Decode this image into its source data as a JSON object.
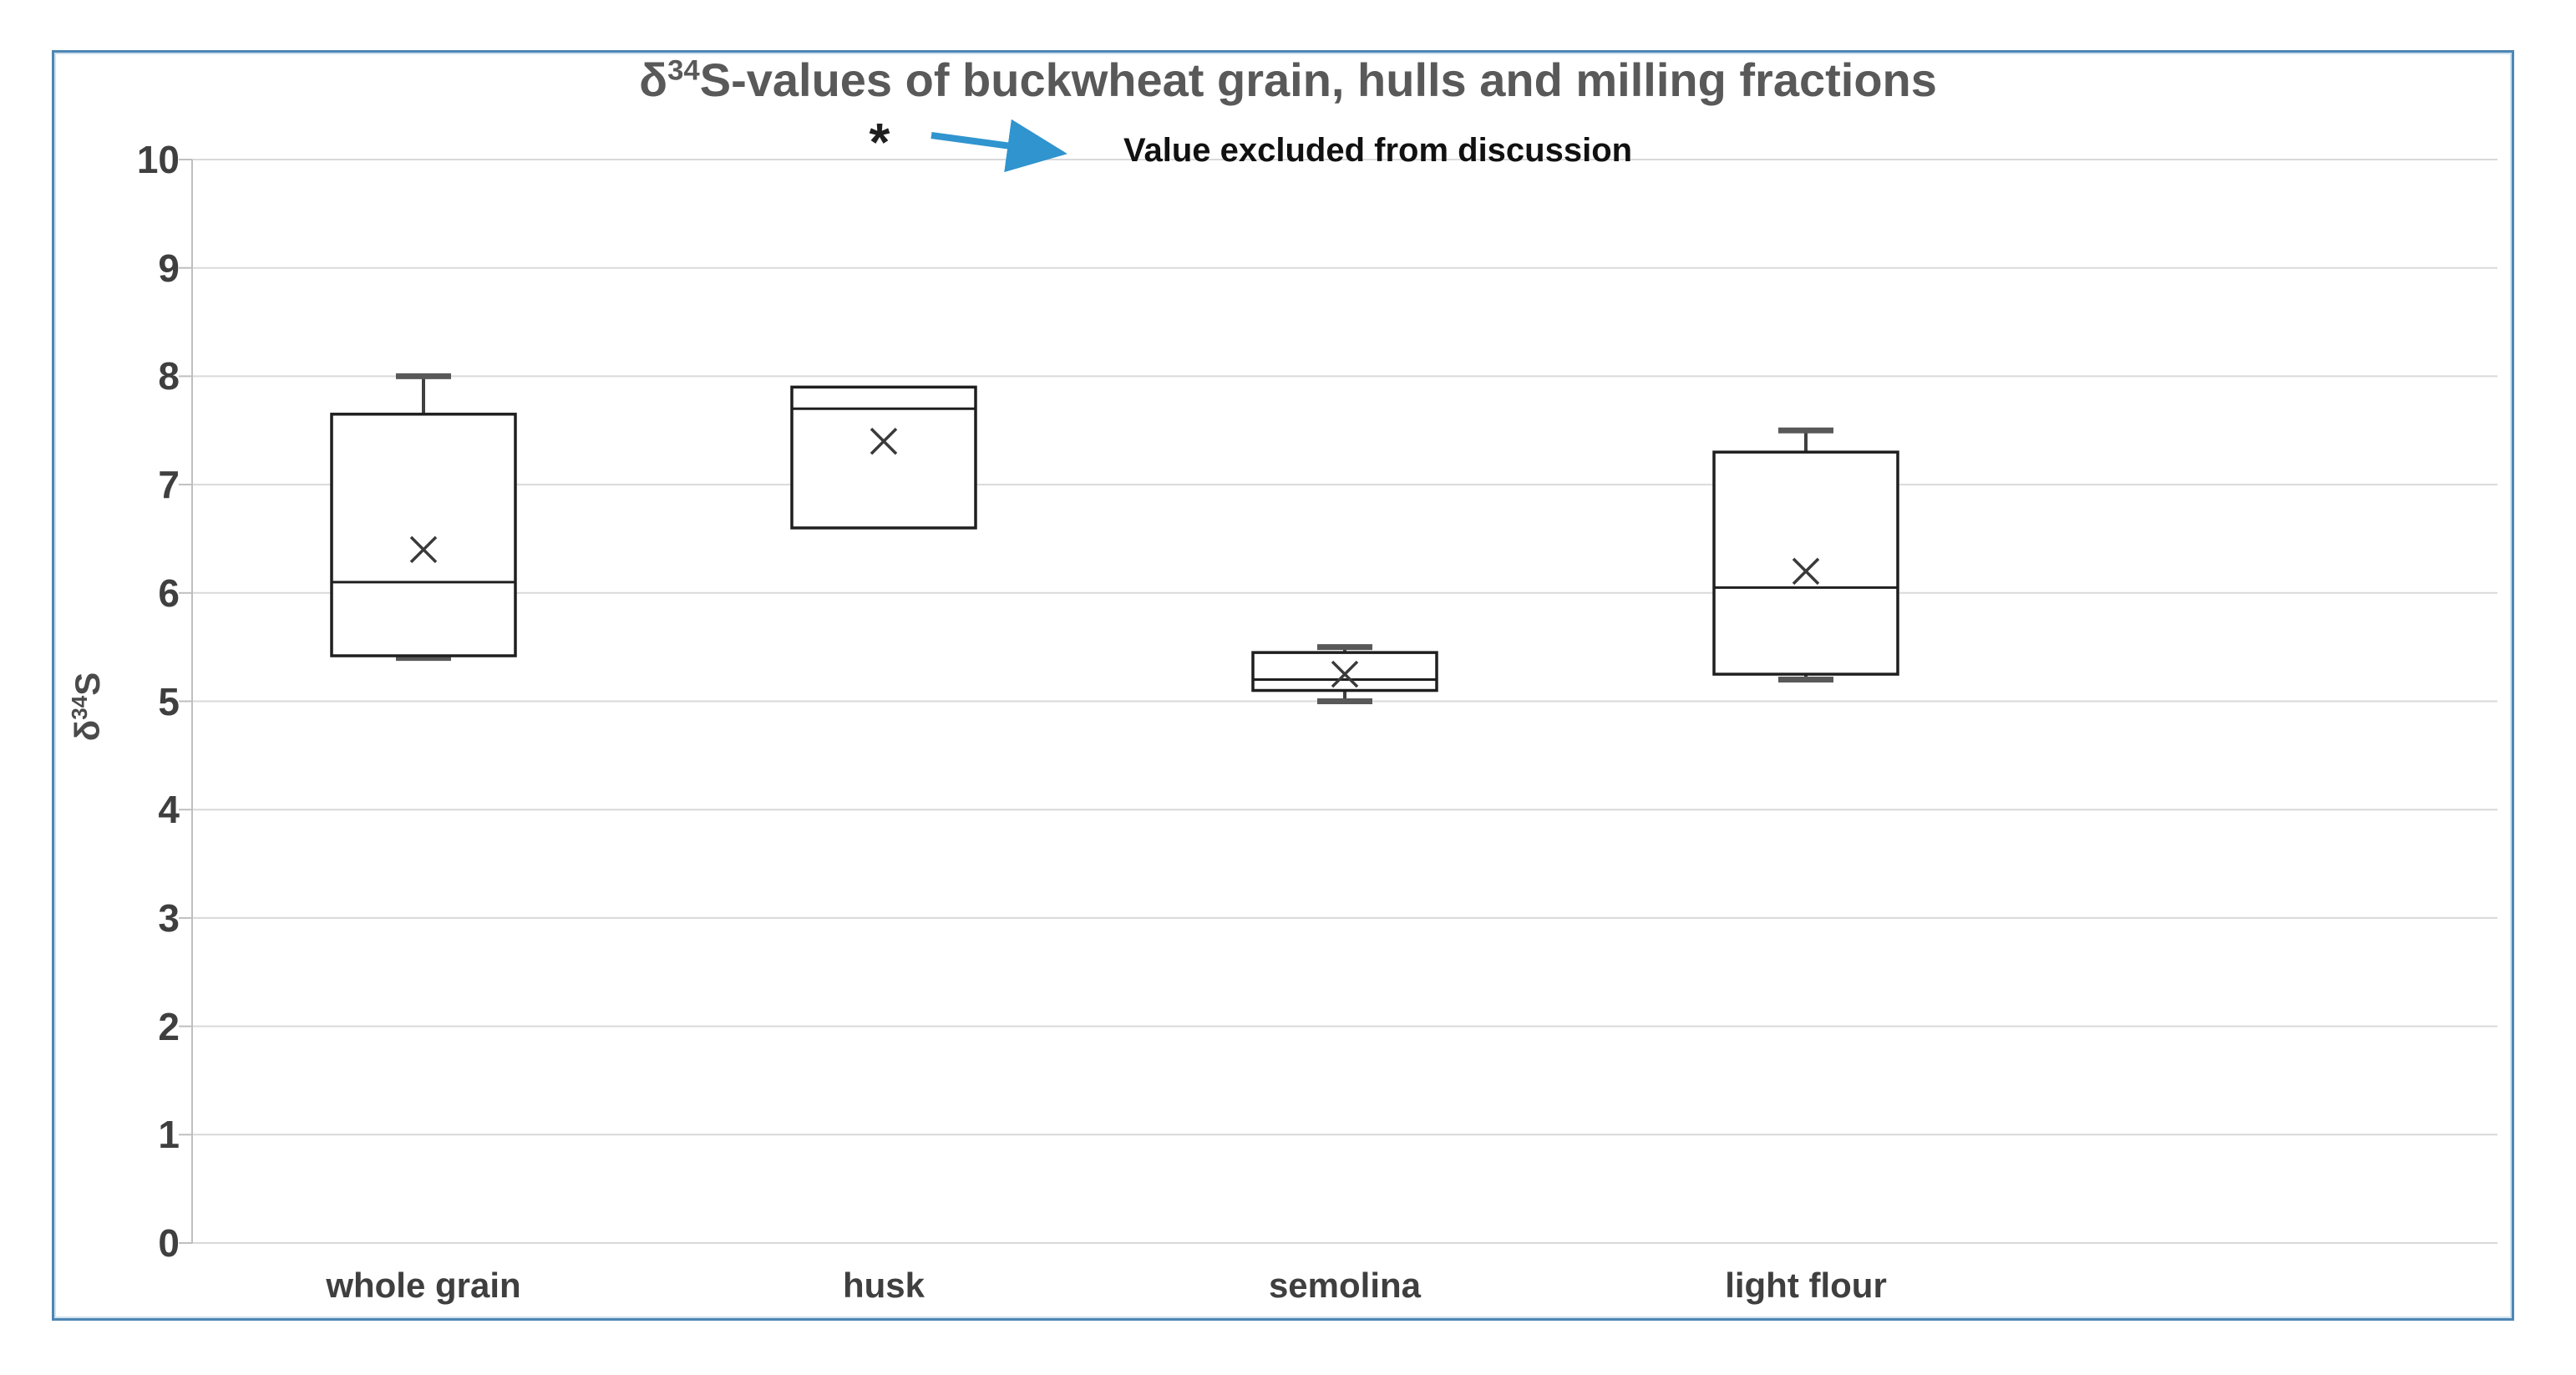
{
  "title": {
    "delta": "δ",
    "superscript": "34",
    "rest": "S-values of buckwheat grain, hulls and milling fractions"
  },
  "ylabel_parts": {
    "delta": "δ",
    "superscript": "34",
    "rest": "S"
  },
  "colors": {
    "frame_border": "#4e86b3",
    "gridline": "#d9d9d9",
    "axis_line": "#bfbfbf",
    "box_stroke": "#1f1f1f",
    "whisker_stem": "#404040",
    "whisker_cap": "#595959",
    "mean_marker": "#3a3a3a",
    "outlier_marker": "#1f1f1f",
    "arrow": "#3094cf",
    "title_text": "#595959",
    "label_text": "#3f3f3f"
  },
  "chart_data": {
    "type": "box",
    "title": "δ34S-values of buckwheat grain, hulls and milling fractions",
    "ylabel": "δ34S",
    "xlabel": "",
    "ylim": [
      0,
      10
    ],
    "ytick_step": 1,
    "ytick_labels": [
      "10",
      "9",
      "8",
      "7",
      "6",
      "5",
      "4",
      "3",
      "2",
      "1",
      "0"
    ],
    "grid": "horizontal-light",
    "legend": "none",
    "categories": [
      "whole grain",
      "husk",
      "semolina",
      "light flour"
    ],
    "x_centers": [
      507,
      1058,
      1610,
      2162
    ],
    "boxes": [
      {
        "category": "whole grain",
        "min": 5.4,
        "q1": 5.42,
        "median": 6.1,
        "mean": 6.4,
        "q3": 7.65,
        "max": 8.0,
        "outliers": []
      },
      {
        "category": "husk",
        "min": 6.6,
        "q1": 6.6,
        "median": 7.7,
        "mean": 7.4,
        "q3": 7.9,
        "max": 7.9,
        "outliers": [
          10.2
        ]
      },
      {
        "category": "semolina",
        "min": 5.0,
        "q1": 5.1,
        "median": 5.2,
        "mean": 5.25,
        "q3": 5.45,
        "max": 5.5,
        "outliers": []
      },
      {
        "category": "light flour",
        "min": 5.2,
        "q1": 5.25,
        "median": 6.05,
        "mean": 6.2,
        "q3": 7.3,
        "max": 7.5,
        "outliers": []
      }
    ],
    "annotation": {
      "marker": "*",
      "text": "Value excluded from discussion"
    }
  }
}
